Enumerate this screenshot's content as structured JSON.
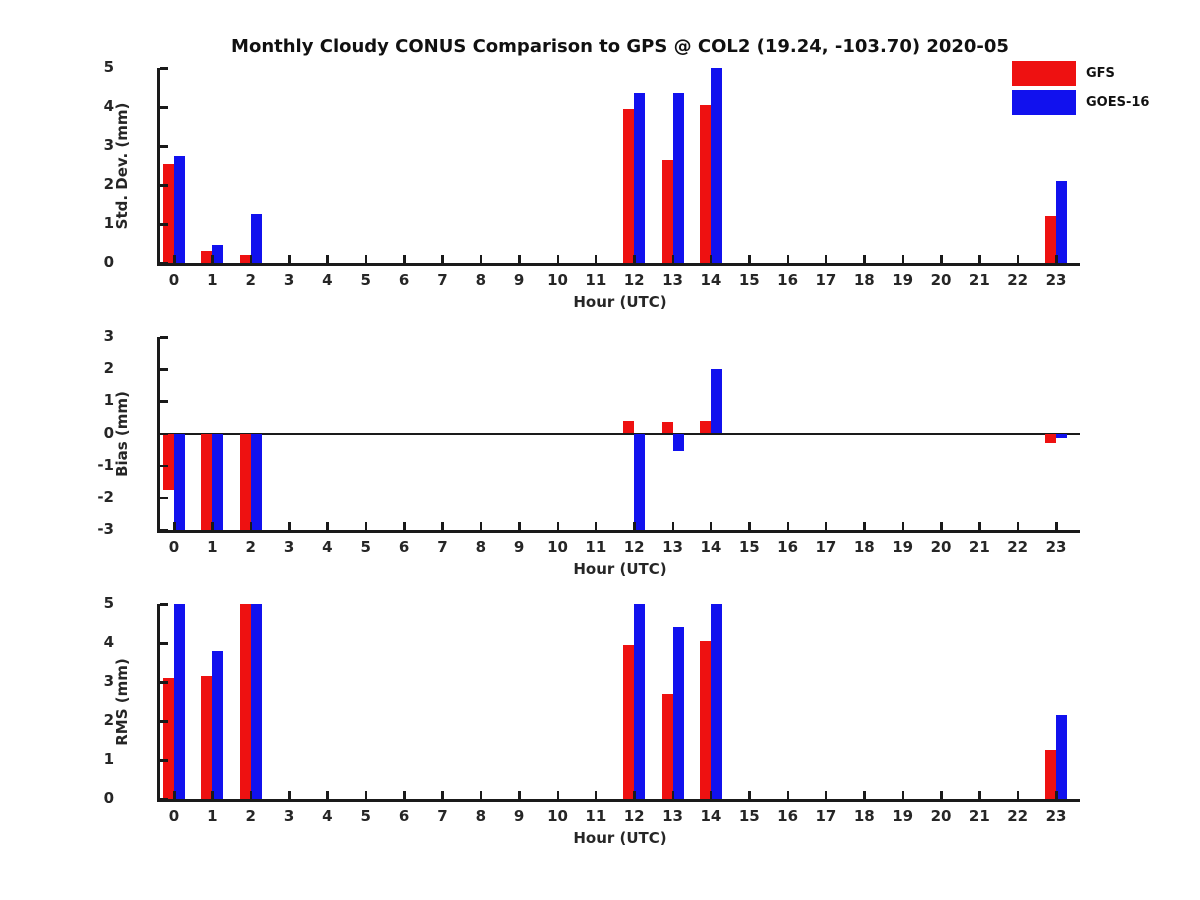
{
  "title": "Monthly Cloudy CONUS Comparison to GPS @ COL2 (19.24, -103.70) 2020-05",
  "colors": {
    "gfs": "#ee1111",
    "goes16": "#1111ee",
    "axis": "#1a1a1a"
  },
  "legend": {
    "items": [
      {
        "label": "GFS",
        "color": "#ee1111"
      },
      {
        "label": "GOES-16",
        "color": "#1111ee"
      }
    ]
  },
  "chart_data": [
    {
      "type": "bar",
      "title": "",
      "xlabel": "Hour (UTC)",
      "ylabel": "Std. Dev. (mm)",
      "ylim": [
        0,
        5
      ],
      "yticks": [
        "0",
        "1",
        "2",
        "3",
        "4",
        "5"
      ],
      "grid": false,
      "legend_position": "top-right",
      "categories": [
        "0",
        "1",
        "2",
        "3",
        "4",
        "5",
        "6",
        "7",
        "8",
        "9",
        "10",
        "11",
        "12",
        "13",
        "14",
        "15",
        "16",
        "17",
        "18",
        "19",
        "20",
        "21",
        "22",
        "23"
      ],
      "series": [
        {
          "name": "GFS",
          "color": "#ee1111",
          "values": [
            2.55,
            0.3,
            0.2,
            0,
            0,
            0,
            0,
            0,
            0,
            0,
            0,
            0,
            3.95,
            2.65,
            4.05,
            0,
            0,
            0,
            0,
            0,
            0,
            0,
            0,
            1.2
          ]
        },
        {
          "name": "GOES-16",
          "color": "#1111ee",
          "values": [
            2.75,
            0.45,
            1.25,
            0,
            0,
            0,
            0,
            0,
            0,
            0,
            0,
            0,
            4.35,
            4.35,
            5.0,
            0,
            0,
            0,
            0,
            0,
            0,
            0,
            0,
            2.1
          ]
        }
      ]
    },
    {
      "type": "bar",
      "title": "",
      "xlabel": "Hour (UTC)",
      "ylabel": "Bias (mm)",
      "ylim": [
        -3,
        3
      ],
      "yticks": [
        "-3",
        "-2",
        "-1",
        "0",
        "1",
        "2",
        "3"
      ],
      "zero_line": true,
      "grid": false,
      "categories": [
        "0",
        "1",
        "2",
        "3",
        "4",
        "5",
        "6",
        "7",
        "8",
        "9",
        "10",
        "11",
        "12",
        "13",
        "14",
        "15",
        "16",
        "17",
        "18",
        "19",
        "20",
        "21",
        "22",
        "23"
      ],
      "series": [
        {
          "name": "GFS",
          "color": "#ee1111",
          "values": [
            -1.75,
            -3,
            -3,
            0,
            0,
            0,
            0,
            0,
            0,
            0,
            0,
            0,
            0.4,
            0.35,
            0.4,
            0,
            0,
            0,
            0,
            0,
            0,
            0,
            0,
            -0.3
          ]
        },
        {
          "name": "GOES-16",
          "color": "#1111ee",
          "values": [
            -3,
            -3,
            -3,
            0,
            0,
            0,
            0,
            0,
            0,
            0,
            0,
            0,
            -3,
            -0.55,
            2.0,
            0,
            0,
            0,
            0,
            0,
            0,
            0,
            0,
            -0.15
          ]
        }
      ]
    },
    {
      "type": "bar",
      "title": "",
      "xlabel": "Hour (UTC)",
      "ylabel": "RMS (mm)",
      "ylim": [
        0,
        5
      ],
      "yticks": [
        "0",
        "1",
        "2",
        "3",
        "4",
        "5"
      ],
      "grid": false,
      "categories": [
        "0",
        "1",
        "2",
        "3",
        "4",
        "5",
        "6",
        "7",
        "8",
        "9",
        "10",
        "11",
        "12",
        "13",
        "14",
        "15",
        "16",
        "17",
        "18",
        "19",
        "20",
        "21",
        "22",
        "23"
      ],
      "series": [
        {
          "name": "GFS",
          "color": "#ee1111",
          "values": [
            3.1,
            3.15,
            5,
            0,
            0,
            0,
            0,
            0,
            0,
            0,
            0,
            0,
            3.95,
            2.7,
            4.05,
            0,
            0,
            0,
            0,
            0,
            0,
            0,
            0,
            1.25
          ]
        },
        {
          "name": "GOES-16",
          "color": "#1111ee",
          "values": [
            5,
            3.8,
            5,
            0,
            0,
            0,
            0,
            0,
            0,
            0,
            0,
            0,
            5,
            4.4,
            5,
            0,
            0,
            0,
            0,
            0,
            0,
            0,
            0,
            2.15
          ]
        }
      ]
    }
  ]
}
